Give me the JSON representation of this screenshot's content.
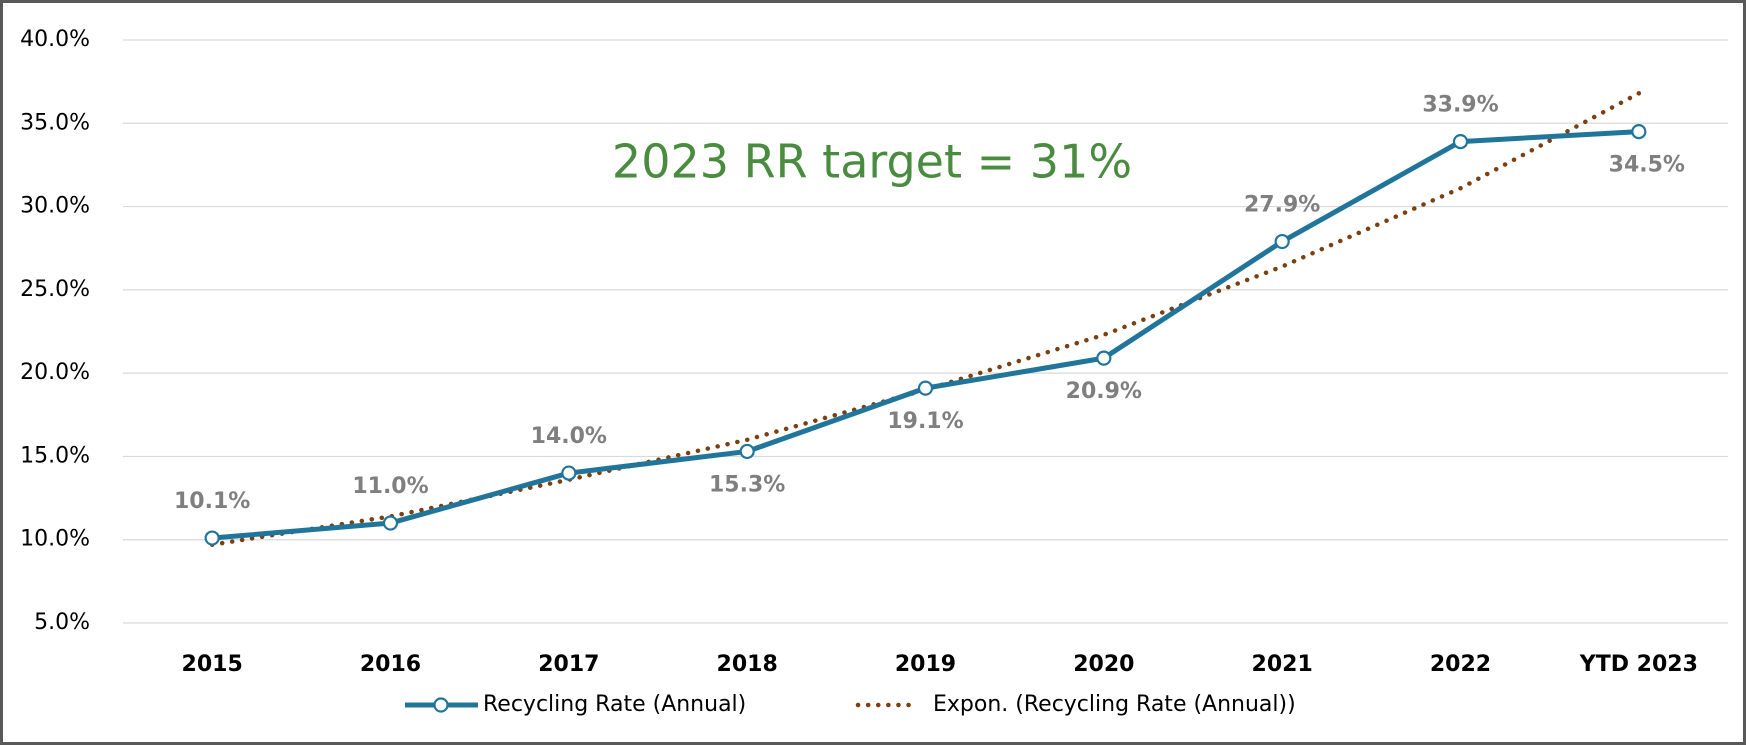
{
  "chart_data": {
    "type": "line",
    "annotation": "2023 RR target = 31%",
    "categories": [
      "2015",
      "2016",
      "2017",
      "2018",
      "2019",
      "2020",
      "2021",
      "2022",
      "YTD 2023"
    ],
    "series": [
      {
        "name": "Recycling Rate (Annual)",
        "color": "#21759b",
        "values": [
          10.1,
          11.0,
          14.0,
          15.3,
          19.1,
          20.9,
          27.9,
          33.9,
          34.5
        ],
        "value_labels": [
          "10.1%",
          "11.0%",
          "14.0%",
          "15.3%",
          "19.1%",
          "20.9%",
          "27.9%",
          "33.9%",
          "34.5%"
        ]
      },
      {
        "name": "Expon. (Recycling Rate (Annual))",
        "color": "#7b3f10",
        "values": [
          9.7,
          11.4,
          13.6,
          16.0,
          19.0,
          22.3,
          26.4,
          31.1,
          36.8
        ]
      }
    ],
    "ylim": [
      5,
      40
    ],
    "yticks": [
      {
        "value": 5,
        "label": "5.0%"
      },
      {
        "value": 10,
        "label": "10.0%"
      },
      {
        "value": 15,
        "label": "15.0%"
      },
      {
        "value": 20,
        "label": "20.0%"
      },
      {
        "value": 25,
        "label": "25.0%"
      },
      {
        "value": 30,
        "label": "30.0%"
      },
      {
        "value": 35,
        "label": "35.0%"
      },
      {
        "value": 40,
        "label": "40.0%"
      }
    ],
    "grid": true
  }
}
